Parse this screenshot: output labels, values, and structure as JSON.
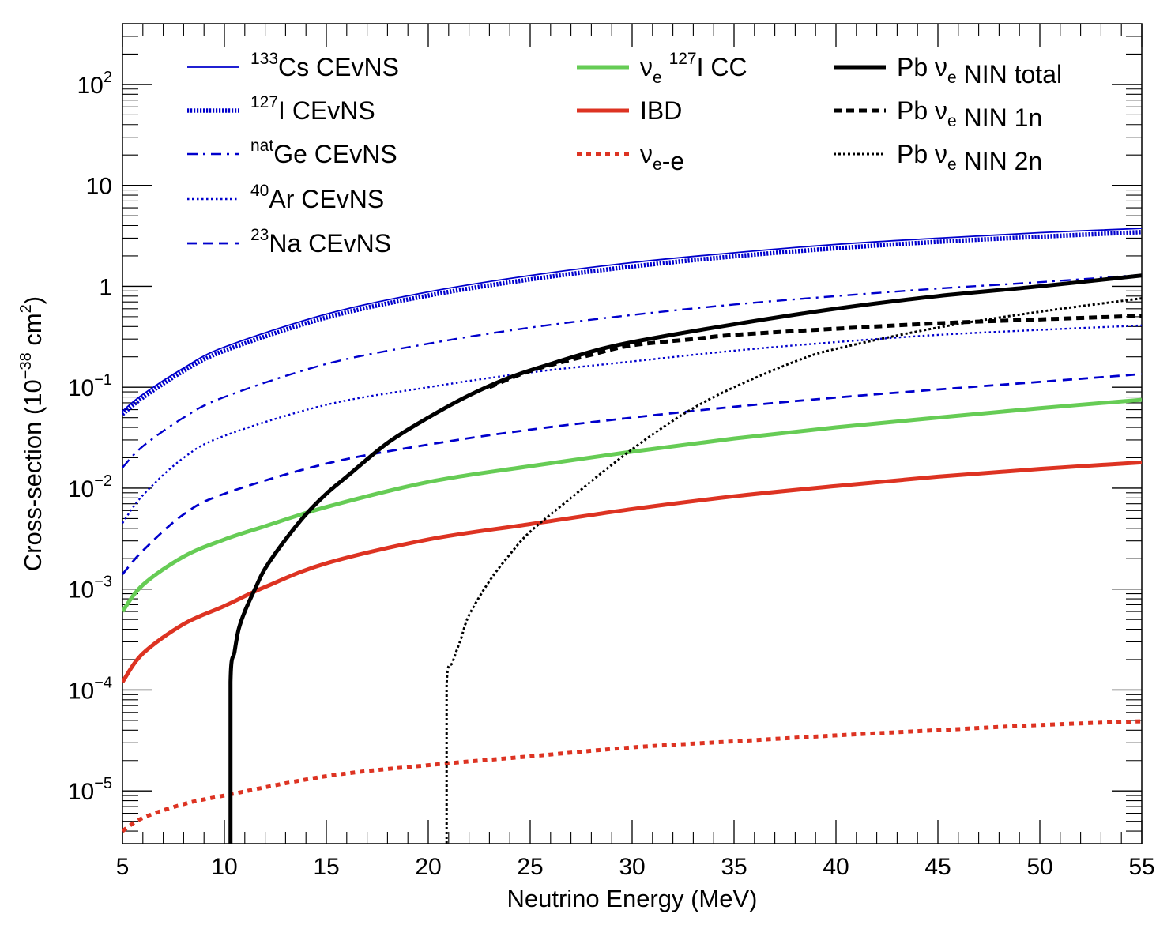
{
  "chart_data": {
    "type": "line",
    "xlabel": "Neutrino Energy (MeV)",
    "ylabel": "Cross-section (10^-38 cm^2)",
    "ylabel_parts": {
      "pre": "Cross-section (10",
      "exp1": "−38",
      "mid": " cm",
      "exp2": "2",
      "post": ")"
    },
    "x_scale": "linear",
    "y_scale": "log",
    "xlim": [
      5,
      55
    ],
    "ylim": [
      3e-06,
      400
    ],
    "x_ticks": [
      5,
      10,
      15,
      20,
      25,
      30,
      35,
      40,
      45,
      50,
      55
    ],
    "x_tick_labels": [
      "5",
      "10",
      "15",
      "20",
      "25",
      "30",
      "35",
      "40",
      "45",
      "50",
      "55"
    ],
    "y_ticks": [
      {
        "value": 1e-05,
        "base": "10",
        "exp": "−5"
      },
      {
        "value": 0.0001,
        "base": "10",
        "exp": "−4"
      },
      {
        "value": 0.001,
        "base": "10",
        "exp": "−3"
      },
      {
        "value": 0.01,
        "base": "10",
        "exp": "−2"
      },
      {
        "value": 0.1,
        "base": "10",
        "exp": "−1"
      },
      {
        "value": 1,
        "base": "1",
        "exp": ""
      },
      {
        "value": 10,
        "base": "10",
        "exp": ""
      },
      {
        "value": 100,
        "base": "10",
        "exp": "2"
      }
    ],
    "legend_position": "top",
    "series": [
      {
        "name": "133Cs CEvNS",
        "legend": {
          "sup": "133",
          "pre": "",
          "sub": "",
          "post": "Cs CEvNS"
        },
        "color": "#0000cc",
        "style": "thin",
        "legend_col": 0,
        "x": [
          5,
          6,
          8,
          10,
          15,
          20,
          25,
          30,
          35,
          40,
          45,
          50,
          55
        ],
        "y": [
          0.058,
          0.085,
          0.155,
          0.25,
          0.53,
          0.88,
          1.28,
          1.72,
          2.15,
          2.6,
          3.0,
          3.4,
          3.75
        ]
      },
      {
        "name": "127I CEvNS",
        "legend": {
          "sup": "127",
          "pre": "",
          "sub": "",
          "post": "I CEvNS"
        },
        "color": "#0000cc",
        "style": "hatched",
        "legend_col": 0,
        "x": [
          5,
          6,
          8,
          10,
          15,
          20,
          25,
          30,
          35,
          40,
          45,
          50,
          55
        ],
        "y": [
          0.054,
          0.079,
          0.145,
          0.23,
          0.49,
          0.81,
          1.17,
          1.57,
          1.98,
          2.38,
          2.76,
          3.1,
          3.45
        ]
      },
      {
        "name": "natGe CEvNS",
        "legend": {
          "sup": "nat",
          "pre": "",
          "sub": "",
          "post": "Ge CEvNS"
        },
        "color": "#0000cc",
        "style": "dashdot",
        "legend_col": 0,
        "x": [
          5,
          6,
          8,
          10,
          15,
          20,
          25,
          30,
          35,
          40,
          45,
          50,
          55
        ],
        "y": [
          0.016,
          0.026,
          0.05,
          0.08,
          0.17,
          0.27,
          0.39,
          0.52,
          0.66,
          0.8,
          0.95,
          1.1,
          1.3
        ]
      },
      {
        "name": "40Ar CEvNS",
        "legend": {
          "sup": "40",
          "pre": "",
          "sub": "",
          "post": "Ar CEvNS"
        },
        "color": "#0000cc",
        "style": "dotted",
        "legend_col": 0,
        "x": [
          5,
          6,
          8,
          10,
          15,
          20,
          25,
          30,
          35,
          40,
          45,
          50,
          55
        ],
        "y": [
          0.0045,
          0.0085,
          0.02,
          0.033,
          0.067,
          0.1,
          0.14,
          0.18,
          0.23,
          0.28,
          0.33,
          0.37,
          0.41
        ]
      },
      {
        "name": "23Na CEvNS",
        "legend": {
          "sup": "23",
          "pre": "",
          "sub": "",
          "post": "Na CEvNS"
        },
        "color": "#0000cc",
        "style": "dashed",
        "legend_col": 0,
        "x": [
          5,
          6,
          8,
          10,
          15,
          20,
          25,
          30,
          35,
          40,
          45,
          50,
          55
        ],
        "y": [
          0.0014,
          0.0024,
          0.0055,
          0.0088,
          0.0175,
          0.027,
          0.038,
          0.05,
          0.064,
          0.079,
          0.095,
          0.113,
          0.135
        ]
      },
      {
        "name": "νe 127I CC",
        "legend": {
          "sup": "127",
          "pre": "ν",
          "sub": "e",
          "post": "I CC",
          "layout": "sub-sup"
        },
        "color": "#66cc55",
        "style": "thick",
        "legend_col": 1,
        "x": [
          5,
          6,
          8,
          10,
          12,
          15,
          20,
          25,
          30,
          35,
          40,
          45,
          50,
          55
        ],
        "y": [
          0.0006,
          0.0011,
          0.0021,
          0.0031,
          0.0042,
          0.0065,
          0.0115,
          0.0165,
          0.023,
          0.031,
          0.04,
          0.05,
          0.062,
          0.075
        ]
      },
      {
        "name": "IBD",
        "legend": {
          "sup": "",
          "pre": "IBD",
          "sub": "",
          "post": ""
        },
        "color": "#dd3322",
        "style": "thick",
        "legend_col": 1,
        "x": [
          5,
          6,
          8,
          10,
          12,
          15,
          20,
          25,
          30,
          35,
          40,
          45,
          50,
          55
        ],
        "y": [
          0.00012,
          0.00023,
          0.00045,
          0.00068,
          0.00105,
          0.0018,
          0.0031,
          0.0044,
          0.0062,
          0.0083,
          0.0105,
          0.013,
          0.0155,
          0.018
        ]
      },
      {
        "name": "νe-e",
        "legend": {
          "sup": "",
          "pre": "ν",
          "sub": "e",
          "post": "-e"
        },
        "color": "#dd3322",
        "style": "thickdotted",
        "legend_col": 1,
        "x": [
          5,
          6,
          8,
          10,
          15,
          20,
          25,
          30,
          35,
          40,
          45,
          50,
          55
        ],
        "y": [
          4e-06,
          5.4e-06,
          7.4e-06,
          9e-06,
          1.4e-05,
          1.8e-05,
          2.2e-05,
          2.7e-05,
          3.1e-05,
          3.55e-05,
          4e-05,
          4.5e-05,
          4.9e-05
        ]
      },
      {
        "name": "Pb νe NIN total",
        "legend": {
          "sup": "",
          "pre": "Pb ν",
          "sub": "e",
          "post": " NIN total"
        },
        "color": "#000000",
        "style": "thick",
        "legend_col": 2,
        "x": [
          10.3,
          10.3,
          10.5,
          10.7,
          11,
          11.5,
          12,
          13,
          14,
          15,
          16,
          18,
          20,
          22,
          24,
          26,
          28,
          30,
          35,
          40,
          45,
          50,
          55
        ],
        "y": [
          3e-06,
          0.00012,
          0.00024,
          0.0004,
          0.0006,
          0.001,
          0.0016,
          0.0031,
          0.0055,
          0.0088,
          0.013,
          0.028,
          0.05,
          0.083,
          0.125,
          0.17,
          0.225,
          0.28,
          0.42,
          0.6,
          0.8,
          1.0,
          1.28
        ]
      },
      {
        "name": "Pb νe NIN 1n",
        "legend": {
          "sup": "",
          "pre": "Pb ν",
          "sub": "e",
          "post": " NIN 1n"
        },
        "color": "#000000",
        "style": "thickdashed",
        "legend_col": 2,
        "x": [
          23,
          25,
          28,
          30,
          33,
          35,
          40,
          45,
          50,
          55
        ],
        "y": [
          0.1,
          0.145,
          0.21,
          0.26,
          0.3,
          0.33,
          0.38,
          0.43,
          0.47,
          0.51
        ]
      },
      {
        "name": "Pb νe NIN 2n",
        "legend": {
          "sup": "",
          "pre": "Pb ν",
          "sub": "e",
          "post": " NIN 2n"
        },
        "color": "#000000",
        "style": "finedotted",
        "legend_col": 2,
        "x": [
          20.9,
          20.9,
          21.2,
          21.6,
          22,
          23,
          24,
          25,
          27,
          29,
          31,
          33,
          35,
          38,
          40,
          45,
          50,
          55
        ],
        "y": [
          3e-06,
          0.00011,
          0.00019,
          0.00032,
          0.00055,
          0.0012,
          0.0022,
          0.0037,
          0.008,
          0.017,
          0.034,
          0.062,
          0.1,
          0.18,
          0.24,
          0.39,
          0.56,
          0.76
        ]
      }
    ]
  }
}
